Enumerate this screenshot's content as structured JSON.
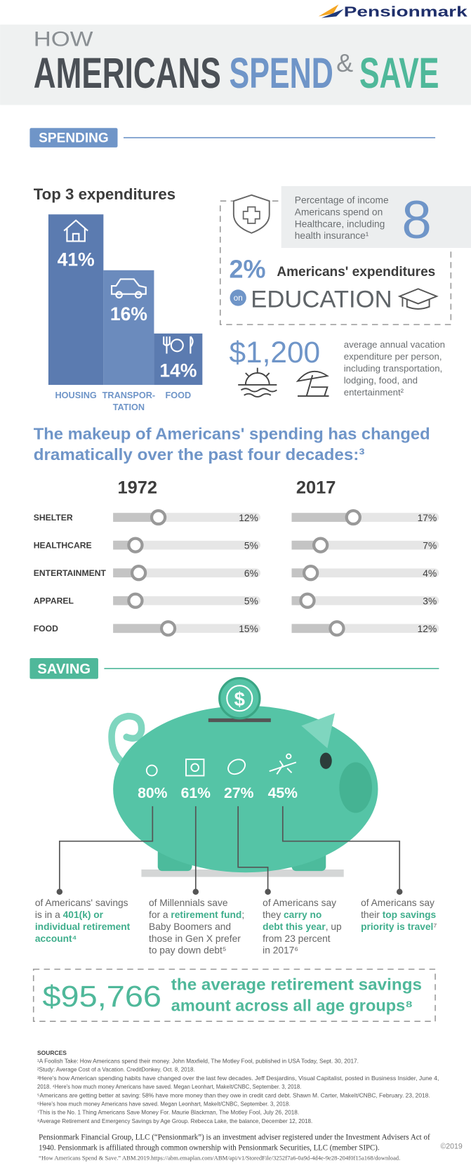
{
  "brand": "Pensionmark",
  "header": {
    "how": "HOW",
    "americans": "AMERICANS",
    "spend": "SPEND",
    "amp": "&",
    "save": "SAVE"
  },
  "spending": {
    "label": "SPENDING",
    "top3": {
      "title": "Top 3 expenditures",
      "items": [
        {
          "lines": [
            "HOUSING"
          ],
          "value": "41%"
        },
        {
          "lines": [
            "TRANSPOR-",
            "TATION"
          ],
          "value": "16%"
        },
        {
          "lines": [
            "FOOD"
          ],
          "value": "14%"
        }
      ]
    },
    "healthcare": {
      "lines": [
        "Percentage of income",
        "Americans spend on",
        "Healthcare, including",
        "health insurance¹"
      ],
      "value": "8"
    },
    "education": {
      "value": "2%",
      "text": "Americans' expenditures",
      "on": "on",
      "word": "EDUCATION"
    },
    "vacation": {
      "value": "$1,200",
      "lines": [
        "average annual vacation",
        "expenditure per person,",
        "including transportation,",
        "lodging, food, and",
        "entertainment²"
      ]
    },
    "makeup": {
      "lines": [
        "The makeup of Americans' spending has changed",
        "dramatically over the past four decades:³"
      ]
    },
    "comparison": {
      "years": [
        "1972",
        "2017"
      ],
      "rows": [
        {
          "label": "SHELTER",
          "values": [
            12,
            17
          ],
          "value_labels": [
            "12%",
            "17%"
          ]
        },
        {
          "label": "HEALTHCARE",
          "values": [
            5,
            7
          ],
          "value_labels": [
            "5%",
            "7%"
          ]
        },
        {
          "label": "ENTERTAINMENT",
          "values": [
            6,
            4
          ],
          "value_labels": [
            "6%",
            "4%"
          ]
        },
        {
          "label": "APPAREL",
          "values": [
            5,
            3
          ],
          "value_labels": [
            "5%",
            "3%"
          ]
        },
        {
          "label": "FOOD",
          "values": [
            15,
            12
          ],
          "value_labels": [
            "15%",
            "12%"
          ]
        }
      ]
    }
  },
  "saving": {
    "label": "SAVING",
    "coin": "$",
    "stats": [
      {
        "value": "80%",
        "caption": [
          [
            {
              "text": "of Americans' savings"
            }
          ],
          [
            {
              "text": "is in a "
            },
            {
              "text": "401(k) or",
              "highlight": true
            }
          ],
          [
            {
              "text": "individual retirement",
              "highlight": true
            }
          ],
          [
            {
              "text": "account⁴",
              "highlight": true
            }
          ]
        ]
      },
      {
        "value": "61%",
        "caption": [
          [
            {
              "text": "of Millennials save"
            }
          ],
          [
            {
              "text": "for a "
            },
            {
              "text": "retirement fund",
              "highlight": true
            },
            {
              "text": ";"
            }
          ],
          [
            {
              "text": "Baby Boomers and"
            }
          ],
          [
            {
              "text": "those in Gen X prefer"
            }
          ],
          [
            {
              "text": "to pay down debt⁵"
            }
          ]
        ]
      },
      {
        "value": "27%",
        "caption": [
          [
            {
              "text": "of Americans say"
            }
          ],
          [
            {
              "text": "they "
            },
            {
              "text": "carry no",
              "highlight": true
            }
          ],
          [
            {
              "text": "debt this year",
              "highlight": true
            },
            {
              "text": ", up"
            }
          ],
          [
            {
              "text": "from 23 percent"
            }
          ],
          [
            {
              "text": "in 2017⁶"
            }
          ]
        ]
      },
      {
        "value": "45%",
        "caption": [
          [
            {
              "text": "of Americans say"
            }
          ],
          [
            {
              "text": "their "
            },
            {
              "text": "top savings",
              "highlight": true
            }
          ],
          [
            {
              "text": "priority is travel",
              "highlight": true
            },
            {
              "text": "⁷"
            }
          ]
        ]
      }
    ],
    "retirement": {
      "value": "$95,766",
      "lines": [
        "the average retirement savings",
        "amount across all age groups⁸"
      ]
    }
  },
  "sources": {
    "title": "SOURCES",
    "lines": [
      "¹A Foolish Take: How Americans spend their money. John Maxfield, The Motley Fool, published in USA Today, Sept. 30, 2017.",
      "²Study: Average Cost of a Vacation. CreditDonkey, Oct. 8, 2018.",
      "³Here's how American spending habits have changed over the last few decades. Jeff Desjardins, Visual Capitalist, posted in Business Insider, June 4,",
      "2018. ⁴Here's how much money Americans have saved. Megan Leonhart, MakeIt/CNBC, September. 3, 2018.",
      "⁵Americans are getting better at saving: 58% have more money than they owe in credit card debt. Shawn M. Carter, MakeIt/CNBC, February. 23, 2018.",
      "⁶Here's how much money Americans have saved. Megan Leonhart, MakeIt/CNBC, September. 3, 2018.",
      "⁷This is the No. 1 Thing Americans Save Money For. Maurie Blackman, The Motley Fool, July 26, 2018.",
      "⁸Average Retirement and Emergency Savings by Age Group. Rebecca Lake, the balance, December 12, 2018."
    ]
  },
  "disclaimer": {
    "lines": [
      "Pensionmark Financial Group, LLC (“Pensionmark”) is an investment adviser registered under the Investment Advisers Act of",
      "1940. Pensionmark is affiliated through common ownership with Pensionmark Securities, LLC (member SIPC)."
    ],
    "citation": "“How Americans Spend & Save.” ABM.2019.https://abm.emaplan.com/ABM/api/v1/StoredFile/3252f7a6-0a9d-4d4e-9e28-204f0f15a168/download.",
    "copyright": "©2019"
  }
}
